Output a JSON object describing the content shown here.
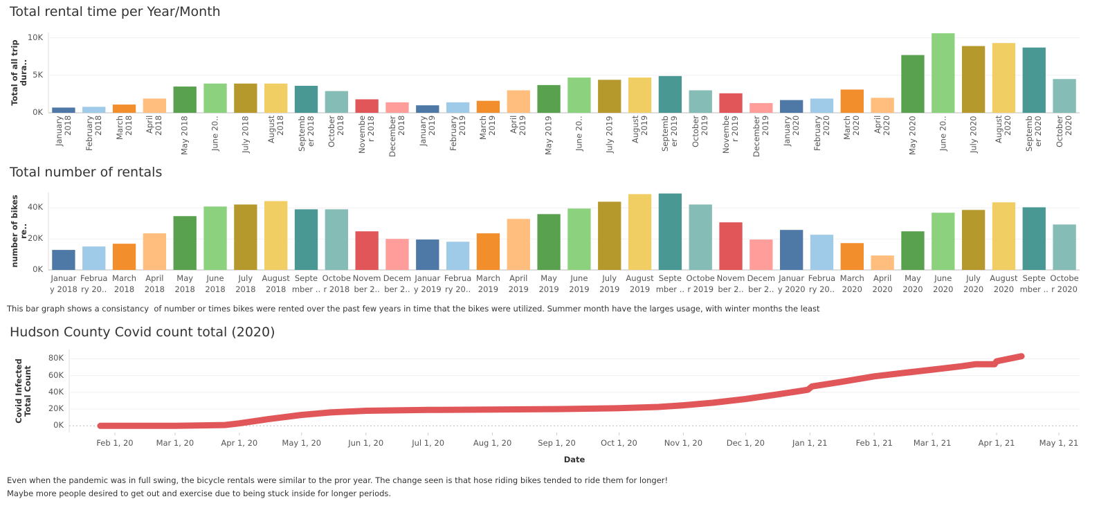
{
  "chart_data": [
    {
      "type": "bar",
      "title": "Total rental time per Year/Month",
      "ylabel": "Total of all trip dura..",
      "categories": [
        "January\n2018",
        "February\n2018",
        "March\n2018",
        "April\n2018",
        "May 2018",
        "June 20..",
        "July 2018",
        "August\n2018",
        "Septemb\ner 2018",
        "October\n2018",
        "Novembe\nr 2018",
        "December\n2018",
        "January\n2019",
        "February\n2019",
        "March\n2019",
        "April\n2019",
        "May 2019",
        "June 20..",
        "July 2019",
        "August\n2019",
        "Septemb\ner 2019",
        "October\n2019",
        "Novembe\nr 2019",
        "December\n2019",
        "January\n2020",
        "February\n2020",
        "March\n2020",
        "April\n2020",
        "May 2020",
        "June 20..",
        "July 2020",
        "August\n2020",
        "Septemb\ner 2020",
        "October\n2020"
      ],
      "values": [
        700,
        800,
        1100,
        1900,
        3500,
        3900,
        3900,
        3900,
        3600,
        2900,
        1800,
        1400,
        1000,
        1400,
        1600,
        3000,
        3700,
        4700,
        4400,
        4700,
        4900,
        3000,
        2600,
        1300,
        1700,
        1900,
        3100,
        2000,
        7700,
        10600,
        8900,
        9300,
        8700,
        4500
      ],
      "palette": [
        "#4e79a7",
        "#a0cbe8",
        "#f28e2b",
        "#ffbe7d",
        "#59a14f",
        "#8cd17d",
        "#b6992d",
        "#f1ce63",
        "#499894",
        "#86bcb6",
        "#e15759",
        "#ff9d9a"
      ],
      "ylim": [
        0,
        10700
      ],
      "yticks": [
        {
          "value": 0,
          "label": "0K"
        },
        {
          "value": 5000,
          "label": "5K"
        },
        {
          "value": 10000,
          "label": "10K"
        }
      ],
      "grid": true,
      "tick_label_rotation": 90
    },
    {
      "type": "bar",
      "title": "Total number of rentals",
      "ylabel": "number of bikes re..",
      "categories": [
        "Januar\ny 2018",
        "Februa\nry 20..",
        "March\n2018",
        "April\n2018",
        "May\n2018",
        "June\n2018",
        "July\n2018",
        "August\n2018",
        "Septe\nmber ..",
        "Octobe\nr 2018",
        "Novem\nber 2..",
        "Decem\nber 2..",
        "Januar\ny 2019",
        "Februa\nry 20..",
        "March\n2019",
        "April\n2019",
        "May\n2019",
        "June\n2019",
        "July\n2019",
        "August\n2019",
        "Septe\nmber ..",
        "Octobe\nr 2019",
        "Novem\nber 2..",
        "Decem\nber 2..",
        "Januar\ny 2020",
        "Februa\nry 20..",
        "March\n2020",
        "April\n2020",
        "May\n2020",
        "June\n2020",
        "July\n2020",
        "August\n2020",
        "Septe\nmber ..",
        "Octobe\nr 2020"
      ],
      "values": [
        12900,
        15100,
        16900,
        23600,
        34700,
        40900,
        42200,
        44400,
        39100,
        39100,
        24900,
        20000,
        19600,
        18200,
        23600,
        32900,
        36000,
        39600,
        44000,
        48900,
        49300,
        42200,
        30700,
        19600,
        25800,
        22700,
        17300,
        9300,
        24900,
        36900,
        38700,
        43600,
        40400,
        29300
      ],
      "palette": [
        "#4e79a7",
        "#a0cbe8",
        "#f28e2b",
        "#ffbe7d",
        "#59a14f",
        "#8cd17d",
        "#b6992d",
        "#f1ce63",
        "#499894",
        "#86bcb6",
        "#e15759",
        "#ff9d9a"
      ],
      "ylim": [
        0,
        50000
      ],
      "yticks": [
        {
          "value": 0,
          "label": "0K"
        },
        {
          "value": 20000,
          "label": "20K"
        },
        {
          "value": 40000,
          "label": "40K"
        }
      ],
      "grid": true,
      "tick_label_rotation": 0,
      "caption": [
        "This bar graph shows a consistancy  of number or times bikes were rented over the past few years in time that the bikes were utilized. Summer month have the larges usage, with winter months the least"
      ]
    },
    {
      "type": "line",
      "title": "Hudson County Covid count total (2020)",
      "xlabel": "Date",
      "ylabel": "Covid Infected Total Count",
      "x": [
        "2020-01-25",
        "2020-03-01",
        "2020-03-25",
        "2020-04-01",
        "2020-04-15",
        "2020-05-01",
        "2020-05-15",
        "2020-06-01",
        "2020-07-01",
        "2020-08-01",
        "2020-09-01",
        "2020-10-01",
        "2020-10-20",
        "2020-11-01",
        "2020-11-15",
        "2020-12-01",
        "2020-12-15",
        "2020-12-31",
        "2021-01-02",
        "2021-01-15",
        "2021-02-01",
        "2021-02-15",
        "2021-03-01",
        "2021-03-15",
        "2021-03-22",
        "2021-03-31",
        "2021-04-01",
        "2021-04-13"
      ],
      "values": [
        0,
        0,
        1000,
        3000,
        8000,
        13000,
        16000,
        18000,
        19000,
        19500,
        20000,
        21000,
        22500,
        24500,
        27500,
        32000,
        37000,
        43000,
        47000,
        52000,
        59000,
        63000,
        67000,
        71000,
        73500,
        73500,
        77000,
        83000
      ],
      "color": "#e15759",
      "xlim": [
        "2020-01-10",
        "2021-05-11"
      ],
      "xticks": [
        {
          "value": "2020-02-01",
          "label": "Feb 1, 20"
        },
        {
          "value": "2020-03-01",
          "label": "Mar 1, 20"
        },
        {
          "value": "2020-04-01",
          "label": "Apr 1, 20"
        },
        {
          "value": "2020-05-01",
          "label": "May 1, 20"
        },
        {
          "value": "2020-06-01",
          "label": "Jun 1, 20"
        },
        {
          "value": "2020-07-01",
          "label": "Jul 1, 20"
        },
        {
          "value": "2020-08-01",
          "label": "Aug 1, 20"
        },
        {
          "value": "2020-09-01",
          "label": "Sep 1, 20"
        },
        {
          "value": "2020-10-01",
          "label": "Oct 1, 20"
        },
        {
          "value": "2020-11-01",
          "label": "Nov 1, 20"
        },
        {
          "value": "2020-12-01",
          "label": "Dec 1, 20"
        },
        {
          "value": "2021-01-01",
          "label": "Jan 1, 21"
        },
        {
          "value": "2021-02-01",
          "label": "Feb 1, 21"
        },
        {
          "value": "2021-03-01",
          "label": "Mar 1, 21"
        },
        {
          "value": "2021-04-01",
          "label": "Apr 1, 21"
        },
        {
          "value": "2021-05-01",
          "label": "May 1, 21"
        }
      ],
      "ylim": [
        -8000,
        91000
      ],
      "yticks": [
        {
          "value": 0,
          "label": "0K"
        },
        {
          "value": 20000,
          "label": "20K"
        },
        {
          "value": 40000,
          "label": "40K"
        },
        {
          "value": 60000,
          "label": "60K"
        },
        {
          "value": 80000,
          "label": "80K"
        }
      ],
      "grid": true,
      "caption": [
        "Even when the pandemic was in full swing, the bicycle rentals were similar to the pror year. The change seen is that hose riding bikes tended to ride them for longer!",
        "Maybe more people desired to get out and exercise due to being stuck inside for longer periods."
      ]
    }
  ]
}
